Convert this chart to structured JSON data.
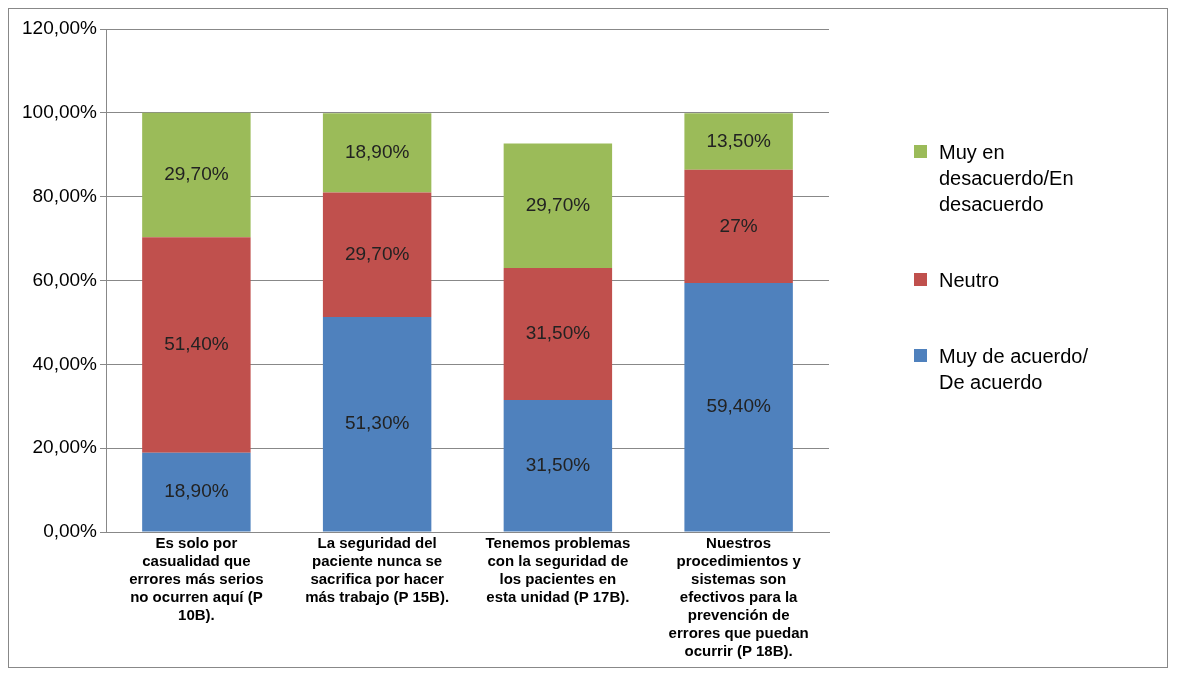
{
  "chart_data": {
    "type": "bar",
    "stacked": true,
    "categories": [
      "Es solo por casualidad que errores más serios no ocurren aquí (P 10B).",
      "La seguridad del paciente nunca se sacrifica por hacer más trabajo (P 15B).",
      "Tenemos problemas con la seguridad de los pacientes en esta unidad (P 17B).",
      "Nuestros procedimientos y sistemas son efectivos para la prevención de errores que puedan ocurrir (P 18B)."
    ],
    "series": [
      {
        "name": "Muy de acuerdo/ De acuerdo",
        "color": "#4f81bd",
        "values": [
          18.9,
          51.3,
          31.5,
          59.4
        ],
        "value_labels": [
          "18,90%",
          "51,30%",
          "31,50%",
          "59,40%"
        ]
      },
      {
        "name": "Neutro",
        "color": "#c0504d",
        "values": [
          51.4,
          29.7,
          31.5,
          27
        ],
        "value_labels": [
          "51,40%",
          "29,70%",
          "31,50%",
          "27%"
        ]
      },
      {
        "name": "Muy en desacuerdo/En desacuerdo",
        "color": "#9bbb59",
        "values": [
          29.7,
          18.9,
          29.7,
          13.5
        ],
        "value_labels": [
          "29,70%",
          "18,90%",
          "29,70%",
          "13,50%"
        ]
      }
    ],
    "ylim": [
      0,
      120
    ],
    "yticks": [
      {
        "value": 0,
        "label": "0,00%"
      },
      {
        "value": 20,
        "label": "20,00%"
      },
      {
        "value": 40,
        "label": "40,00%"
      },
      {
        "value": 60,
        "label": "60,00%"
      },
      {
        "value": 80,
        "label": "80,00%"
      },
      {
        "value": 100,
        "label": "100,00%"
      },
      {
        "value": 120,
        "label": "120,00%"
      }
    ],
    "grid": "y",
    "legend": "right"
  }
}
